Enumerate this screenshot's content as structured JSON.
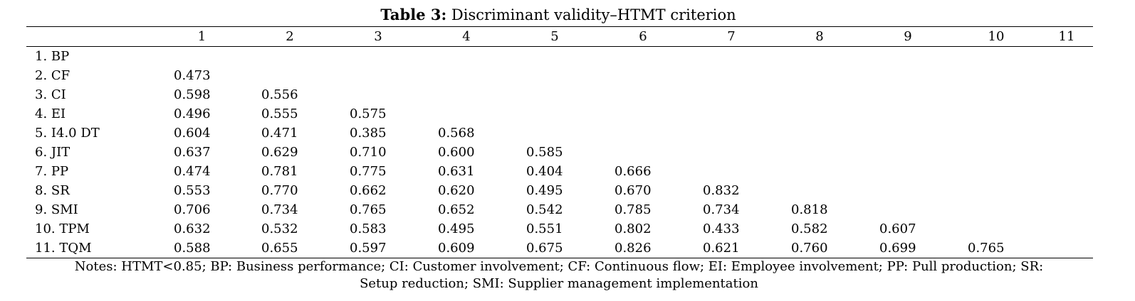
{
  "caption": {
    "label": "Table 3:",
    "text": "Discriminant validity–HTMT criterion"
  },
  "table": {
    "column_headers": [
      "",
      "1",
      "2",
      "3",
      "4",
      "5",
      "6",
      "7",
      "8",
      "9",
      "10",
      "11"
    ],
    "rows": [
      {
        "label": "1. BP",
        "values": []
      },
      {
        "label": "2. CF",
        "values": [
          "0.473"
        ]
      },
      {
        "label": "3. CI",
        "values": [
          "0.598",
          "0.556"
        ]
      },
      {
        "label": "4. EI",
        "values": [
          "0.496",
          "0.555",
          "0.575"
        ]
      },
      {
        "label": "5. I4.0 DT",
        "values": [
          "0.604",
          "0.471",
          "0.385",
          "0.568"
        ]
      },
      {
        "label": "6. JIT",
        "values": [
          "0.637",
          "0.629",
          "0.710",
          "0.600",
          "0.585"
        ]
      },
      {
        "label": "7. PP",
        "values": [
          "0.474",
          "0.781",
          "0.775",
          "0.631",
          "0.404",
          "0.666"
        ]
      },
      {
        "label": "8. SR",
        "values": [
          "0.553",
          "0.770",
          "0.662",
          "0.620",
          "0.495",
          "0.670",
          "0.832"
        ]
      },
      {
        "label": "9. SMI",
        "values": [
          "0.706",
          "0.734",
          "0.765",
          "0.652",
          "0.542",
          "0.785",
          "0.734",
          "0.818"
        ]
      },
      {
        "label": "10. TPM",
        "values": [
          "0.632",
          "0.532",
          "0.583",
          "0.495",
          "0.551",
          "0.802",
          "0.433",
          "0.582",
          "0.607"
        ]
      },
      {
        "label": "11. TQM",
        "values": [
          "0.588",
          "0.655",
          "0.597",
          "0.609",
          "0.675",
          "0.826",
          "0.621",
          "0.760",
          "0.699",
          "0.765"
        ]
      }
    ]
  },
  "notes": "Notes: HTMT<0.85; BP: Business performance; CI: Customer involvement; CF: Continuous flow; EI: Employee involvement; PP: Pull production; SR: Setup reduction; SMI: Supplier management implementation"
}
